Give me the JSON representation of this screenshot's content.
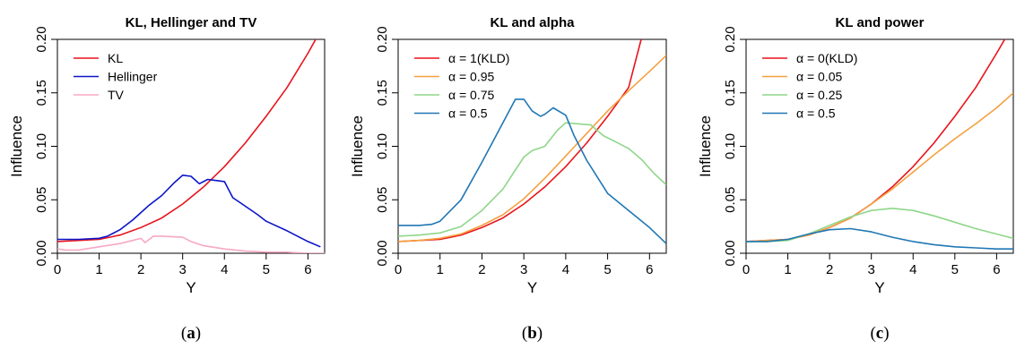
{
  "chart_data": [
    {
      "type": "line",
      "title": "KL, Hellinger and TV",
      "xlabel": "Y",
      "ylabel": "Influence",
      "caption_open": "(",
      "caption": "a",
      "caption_close": ")",
      "xlim": [
        0,
        6.4
      ],
      "ylim": [
        0,
        0.2
      ],
      "xticks": [
        "0",
        "1",
        "2",
        "3",
        "4",
        "5",
        "6"
      ],
      "yticks": [
        "0.00",
        "0.05",
        "0.10",
        "0.15",
        "0.20"
      ],
      "legend_position": "top-left",
      "series": [
        {
          "name": "KL",
          "color": "#e8141c",
          "x": [
            0,
            0.5,
            1,
            1.5,
            2,
            2.5,
            3,
            3.5,
            4,
            4.5,
            5,
            5.5,
            6,
            6.4
          ],
          "y": [
            0.011,
            0.012,
            0.013,
            0.017,
            0.024,
            0.033,
            0.046,
            0.062,
            0.081,
            0.103,
            0.128,
            0.155,
            0.187,
            0.215
          ]
        },
        {
          "name": "Hellinger",
          "color": "#0a14c8",
          "x": [
            0,
            0.5,
            1,
            1.2,
            1.5,
            1.8,
            2,
            2.2,
            2.5,
            2.8,
            3,
            3.2,
            3.4,
            3.6,
            3.8,
            4,
            4.2,
            4.5,
            4.8,
            5,
            5.5,
            6,
            6.3
          ],
          "y": [
            0.013,
            0.013,
            0.014,
            0.016,
            0.022,
            0.031,
            0.038,
            0.045,
            0.054,
            0.066,
            0.073,
            0.072,
            0.065,
            0.069,
            0.068,
            0.067,
            0.052,
            0.044,
            0.036,
            0.03,
            0.021,
            0.011,
            0.006
          ]
        },
        {
          "name": "TV",
          "color": "#f7a8c4",
          "x": [
            0,
            0.2,
            0.5,
            1,
            1.5,
            1.8,
            2,
            2.1,
            2.2,
            2.3,
            2.5,
            3,
            3.2,
            3.5,
            4,
            4.5,
            5,
            5.5,
            6,
            6.4
          ],
          "y": [
            0.004,
            0.003,
            0.003,
            0.006,
            0.009,
            0.012,
            0.014,
            0.01,
            0.013,
            0.016,
            0.016,
            0.015,
            0.011,
            0.007,
            0.004,
            0.002,
            0.001,
            0.001,
            0.0,
            0.0
          ]
        }
      ]
    },
    {
      "type": "line",
      "title": "KL and alpha",
      "xlabel": "Y",
      "ylabel": "Influence",
      "caption_open": "(",
      "caption": "b",
      "caption_close": ")",
      "xlim": [
        0,
        6.4
      ],
      "ylim": [
        0,
        0.2
      ],
      "xticks": [
        "0",
        "1",
        "2",
        "3",
        "4",
        "5",
        "6"
      ],
      "yticks": [
        "0.00",
        "0.05",
        "0.10",
        "0.15",
        "0.20"
      ],
      "legend_position": "top-left",
      "series": [
        {
          "name": "α = 1(KLD)",
          "color": "#e8141c",
          "x": [
            0,
            0.5,
            1,
            1.5,
            2,
            2.5,
            3,
            3.5,
            4,
            4.5,
            5,
            5.5,
            5.8
          ],
          "y": [
            0.011,
            0.012,
            0.013,
            0.017,
            0.024,
            0.033,
            0.046,
            0.062,
            0.081,
            0.103,
            0.128,
            0.155,
            0.2
          ]
        },
        {
          "name": "α = 0.95",
          "color": "#f5a040",
          "x": [
            0,
            0.5,
            1,
            1.5,
            2,
            2.5,
            3,
            3.5,
            4,
            4.5,
            5,
            5.5,
            6,
            6.4
          ],
          "y": [
            0.011,
            0.012,
            0.014,
            0.018,
            0.026,
            0.036,
            0.051,
            0.07,
            0.091,
            0.112,
            0.133,
            0.152,
            0.17,
            0.185
          ]
        },
        {
          "name": "α = 0.75",
          "color": "#8fd68a",
          "x": [
            0,
            0.5,
            1,
            1.5,
            2,
            2.5,
            3,
            3.2,
            3.5,
            3.8,
            4,
            4.3,
            4.6,
            4.9,
            5.2,
            5.5,
            5.8,
            6.1,
            6.4
          ],
          "y": [
            0.016,
            0.017,
            0.019,
            0.025,
            0.04,
            0.06,
            0.09,
            0.096,
            0.1,
            0.115,
            0.122,
            0.121,
            0.12,
            0.11,
            0.104,
            0.098,
            0.088,
            0.075,
            0.064
          ]
        },
        {
          "name": "α = 0.5",
          "color": "#1f77b4",
          "x": [
            0,
            0.5,
            0.8,
            1,
            1.5,
            2,
            2.5,
            2.8,
            3,
            3.2,
            3.4,
            3.5,
            3.7,
            4,
            4.2,
            4.5,
            5,
            5.5,
            6,
            6.4
          ],
          "y": [
            0.026,
            0.026,
            0.027,
            0.03,
            0.05,
            0.085,
            0.122,
            0.144,
            0.144,
            0.133,
            0.128,
            0.13,
            0.136,
            0.129,
            0.11,
            0.087,
            0.056,
            0.04,
            0.024,
            0.009
          ]
        }
      ]
    },
    {
      "type": "line",
      "title": "KL and power",
      "xlabel": "Y",
      "ylabel": "Influence",
      "caption_open": "(",
      "caption": "c",
      "caption_close": ")",
      "xlim": [
        0,
        6.4
      ],
      "ylim": [
        0,
        0.2
      ],
      "xticks": [
        "0",
        "1",
        "2",
        "3",
        "4",
        "5",
        "6"
      ],
      "yticks": [
        "0.00",
        "0.05",
        "0.10",
        "0.15",
        "0.20"
      ],
      "legend_position": "top-left",
      "series": [
        {
          "name": "α = 0(KLD)",
          "color": "#e8141c",
          "x": [
            0,
            0.5,
            1,
            1.5,
            2,
            2.5,
            3,
            3.5,
            4,
            4.5,
            5,
            5.5,
            6,
            6.3
          ],
          "y": [
            0.011,
            0.012,
            0.013,
            0.017,
            0.024,
            0.033,
            0.046,
            0.062,
            0.081,
            0.103,
            0.128,
            0.155,
            0.187,
            0.207
          ]
        },
        {
          "name": "α = 0.05",
          "color": "#f5a040",
          "x": [
            0,
            0.5,
            1,
            1.5,
            2,
            2.5,
            3,
            3.5,
            4,
            4.5,
            5,
            5.5,
            6,
            6.4
          ],
          "y": [
            0.011,
            0.012,
            0.013,
            0.017,
            0.024,
            0.033,
            0.046,
            0.06,
            0.076,
            0.092,
            0.107,
            0.121,
            0.136,
            0.15
          ]
        },
        {
          "name": "α = 0.25",
          "color": "#8fd68a",
          "x": [
            0,
            0.5,
            1,
            1.5,
            2,
            2.5,
            3,
            3.5,
            4,
            4.5,
            5,
            5.5,
            6,
            6.4
          ],
          "y": [
            0.011,
            0.011,
            0.012,
            0.018,
            0.026,
            0.034,
            0.04,
            0.042,
            0.04,
            0.035,
            0.029,
            0.023,
            0.018,
            0.014
          ]
        },
        {
          "name": "α = 0.5",
          "color": "#1f77b4",
          "x": [
            0,
            0.5,
            1,
            1.5,
            2,
            2.5,
            3,
            3.5,
            4,
            4.5,
            5,
            5.5,
            6,
            6.4
          ],
          "y": [
            0.011,
            0.011,
            0.013,
            0.018,
            0.022,
            0.023,
            0.02,
            0.015,
            0.011,
            0.008,
            0.006,
            0.005,
            0.004,
            0.004
          ]
        }
      ]
    }
  ]
}
